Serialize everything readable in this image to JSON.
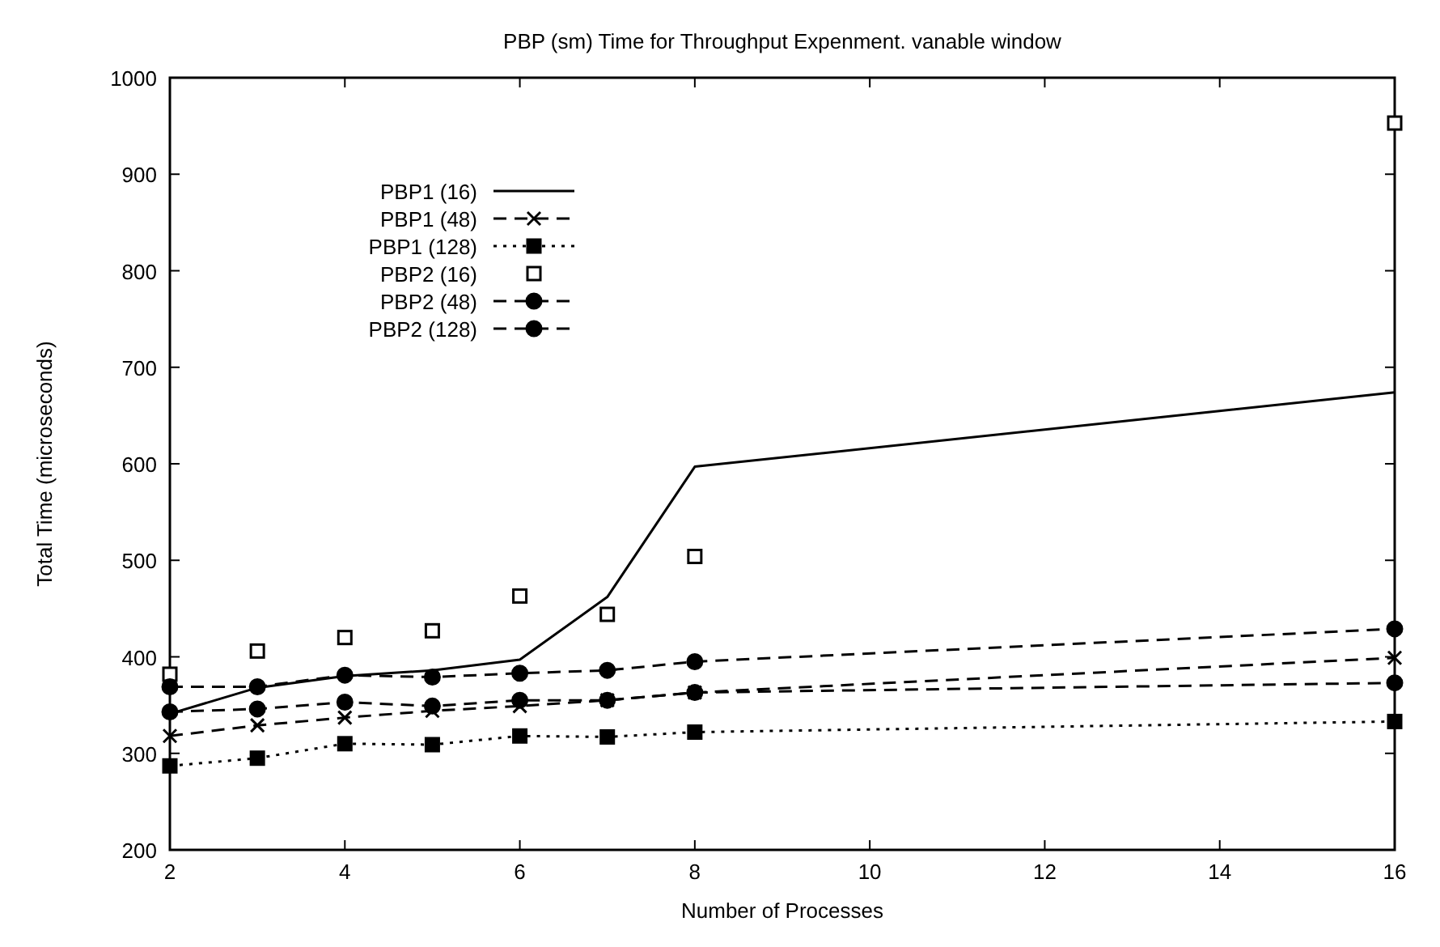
{
  "chart_data": {
    "type": "line",
    "title": "PBP (sm) Time for Throughput Expenment. vanable window",
    "xlabel": "Number of Processes",
    "ylabel": "Total Time (microseconds)",
    "x": [
      2,
      3,
      4,
      5,
      6,
      7,
      8,
      16
    ],
    "xlim": [
      2,
      16
    ],
    "xticks": [
      2,
      4,
      6,
      8,
      10,
      12,
      14,
      16
    ],
    "ylim": [
      200,
      1000
    ],
    "yticks": [
      200,
      300,
      400,
      500,
      600,
      700,
      800,
      900,
      1000
    ],
    "grid": false,
    "legend": "top left",
    "series": [
      {
        "name": "PBP1  (16)",
        "color": "#000000",
        "marker": "none",
        "line_style": "solid",
        "values": [
          341,
          368,
          380,
          386,
          397,
          462,
          597,
          674
        ]
      },
      {
        "name": "PBP1  (48)",
        "color": "#000000",
        "marker": "cross",
        "line_style": "dashed",
        "values": [
          318,
          329,
          337,
          344,
          349,
          355,
          363,
          399
        ]
      },
      {
        "name": "PBP1 (128)",
        "color": "#000000",
        "marker": "square",
        "line_style": "dotted",
        "values": [
          287,
          295,
          310,
          309,
          318,
          317,
          322,
          333
        ]
      },
      {
        "name": "PBP2  (16)",
        "type": "scatter",
        "color": "#000000",
        "marker": "square",
        "values": [
          382,
          406,
          420,
          427,
          463,
          444,
          504,
          953
        ]
      },
      {
        "name": "PBP2  (48)",
        "color": "#000000",
        "marker": "circle",
        "line_style": "dashed",
        "values": [
          369,
          369,
          381,
          379,
          383,
          386,
          395,
          429
        ]
      },
      {
        "name": "PBP2 (128)",
        "color": "#000000",
        "marker": "circle",
        "line_style": "dashed",
        "values": [
          343,
          346,
          353,
          349,
          355,
          355,
          363,
          373
        ]
      }
    ]
  }
}
